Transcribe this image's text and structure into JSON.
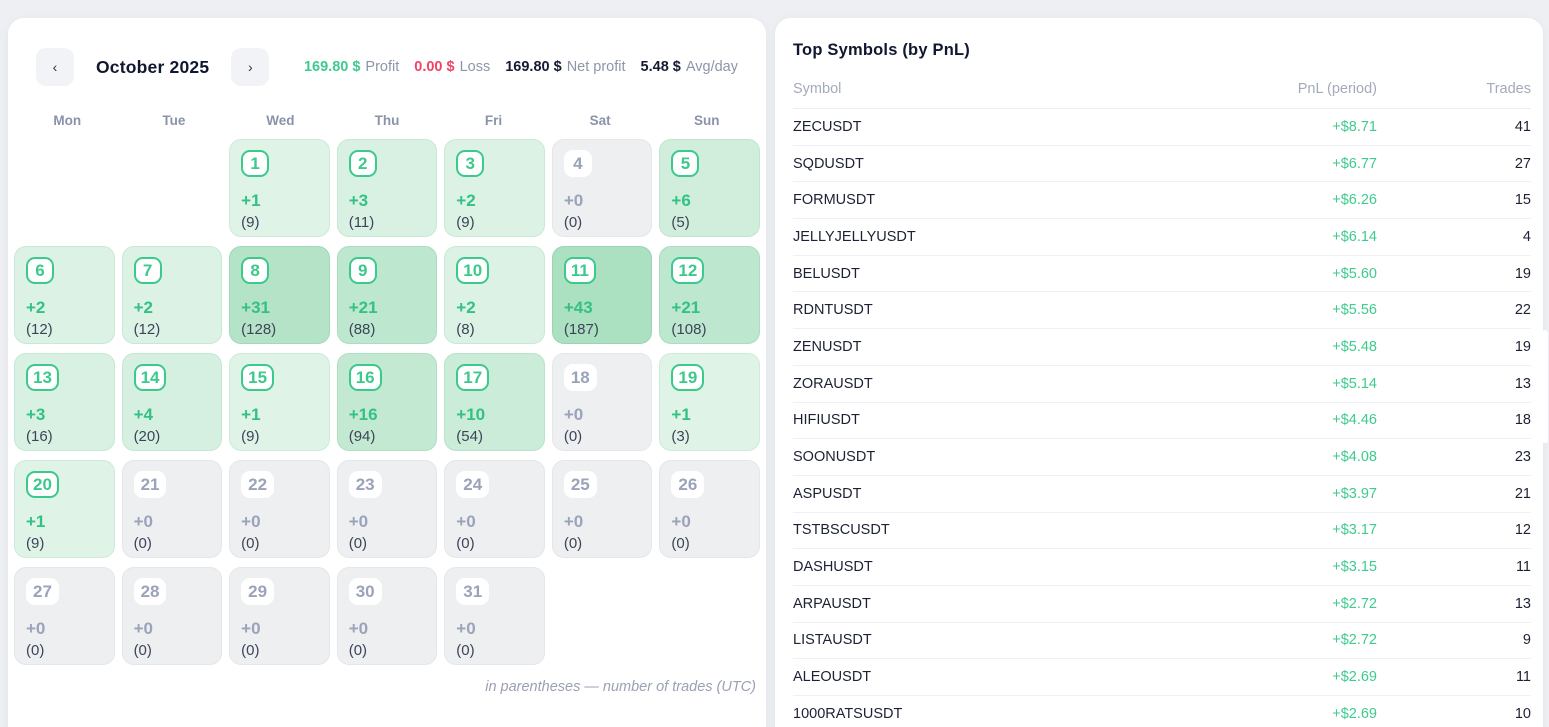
{
  "colors": {
    "green": "#3ecb8e",
    "red": "#f0436a",
    "dark": "#141b33",
    "muted_label": "#8d95a9",
    "cell_zero_bg": "#edeff1",
    "cell_green_light": "#e8f7ee",
    "cell_green_dark": "#abe0c0",
    "badge_green": "#3cc98c"
  },
  "calendar": {
    "title": "October 2025",
    "prev_label": "‹",
    "next_label": "›",
    "stats": [
      {
        "value": "169.80 $",
        "label": "Profit",
        "color": "green"
      },
      {
        "value": "0.00 $",
        "label": "Loss",
        "color": "red"
      },
      {
        "value": "169.80 $",
        "label": "Net profit",
        "color": "dark"
      },
      {
        "value": "5.48 $",
        "label": "Avg/day",
        "color": "dark"
      }
    ],
    "weekdays": [
      "Mon",
      "Tue",
      "Wed",
      "Thu",
      "Fri",
      "Sat",
      "Sun"
    ],
    "first_weekday_index": 2,
    "max_pnl": 43,
    "days": [
      {
        "day": 1,
        "pnl": 1,
        "pnl_label": "+1",
        "trades_label": "(9)"
      },
      {
        "day": 2,
        "pnl": 3,
        "pnl_label": "+3",
        "trades_label": "(11)"
      },
      {
        "day": 3,
        "pnl": 2,
        "pnl_label": "+2",
        "trades_label": "(9)"
      },
      {
        "day": 4,
        "pnl": 0,
        "pnl_label": "+0",
        "trades_label": "(0)"
      },
      {
        "day": 5,
        "pnl": 6,
        "pnl_label": "+6",
        "trades_label": "(5)"
      },
      {
        "day": 6,
        "pnl": 2,
        "pnl_label": "+2",
        "trades_label": "(12)"
      },
      {
        "day": 7,
        "pnl": 2,
        "pnl_label": "+2",
        "trades_label": "(12)"
      },
      {
        "day": 8,
        "pnl": 31,
        "pnl_label": "+31",
        "trades_label": "(128)"
      },
      {
        "day": 9,
        "pnl": 21,
        "pnl_label": "+21",
        "trades_label": "(88)"
      },
      {
        "day": 10,
        "pnl": 2,
        "pnl_label": "+2",
        "trades_label": "(8)"
      },
      {
        "day": 11,
        "pnl": 43,
        "pnl_label": "+43",
        "trades_label": "(187)"
      },
      {
        "day": 12,
        "pnl": 21,
        "pnl_label": "+21",
        "trades_label": "(108)"
      },
      {
        "day": 13,
        "pnl": 3,
        "pnl_label": "+3",
        "trades_label": "(16)"
      },
      {
        "day": 14,
        "pnl": 4,
        "pnl_label": "+4",
        "trades_label": "(20)"
      },
      {
        "day": 15,
        "pnl": 1,
        "pnl_label": "+1",
        "trades_label": "(9)"
      },
      {
        "day": 16,
        "pnl": 16,
        "pnl_label": "+16",
        "trades_label": "(94)"
      },
      {
        "day": 17,
        "pnl": 10,
        "pnl_label": "+10",
        "trades_label": "(54)"
      },
      {
        "day": 18,
        "pnl": 0,
        "pnl_label": "+0",
        "trades_label": "(0)"
      },
      {
        "day": 19,
        "pnl": 1,
        "pnl_label": "+1",
        "trades_label": "(3)"
      },
      {
        "day": 20,
        "pnl": 1,
        "pnl_label": "+1",
        "trades_label": "(9)"
      },
      {
        "day": 21,
        "pnl": 0,
        "pnl_label": "+0",
        "trades_label": "(0)"
      },
      {
        "day": 22,
        "pnl": 0,
        "pnl_label": "+0",
        "trades_label": "(0)"
      },
      {
        "day": 23,
        "pnl": 0,
        "pnl_label": "+0",
        "trades_label": "(0)"
      },
      {
        "day": 24,
        "pnl": 0,
        "pnl_label": "+0",
        "trades_label": "(0)"
      },
      {
        "day": 25,
        "pnl": 0,
        "pnl_label": "+0",
        "trades_label": "(0)"
      },
      {
        "day": 26,
        "pnl": 0,
        "pnl_label": "+0",
        "trades_label": "(0)"
      },
      {
        "day": 27,
        "pnl": 0,
        "pnl_label": "+0",
        "trades_label": "(0)"
      },
      {
        "day": 28,
        "pnl": 0,
        "pnl_label": "+0",
        "trades_label": "(0)"
      },
      {
        "day": 29,
        "pnl": 0,
        "pnl_label": "+0",
        "trades_label": "(0)"
      },
      {
        "day": 30,
        "pnl": 0,
        "pnl_label": "+0",
        "trades_label": "(0)"
      },
      {
        "day": 31,
        "pnl": 0,
        "pnl_label": "+0",
        "trades_label": "(0)"
      }
    ],
    "footnote": "in parentheses — number of trades (UTC)"
  },
  "symbols_panel": {
    "title": "Top Symbols (by PnL)",
    "columns": [
      "Symbol",
      "PnL (period)",
      "Trades"
    ],
    "rows": [
      {
        "symbol": "ZECUSDT",
        "pnl": "+$8.71",
        "trades": "41"
      },
      {
        "symbol": "SQDUSDT",
        "pnl": "+$6.77",
        "trades": "27"
      },
      {
        "symbol": "FORMUSDT",
        "pnl": "+$6.26",
        "trades": "15"
      },
      {
        "symbol": "JELLYJELLYUSDT",
        "pnl": "+$6.14",
        "trades": "4"
      },
      {
        "symbol": "BELUSDT",
        "pnl": "+$5.60",
        "trades": "19"
      },
      {
        "symbol": "RDNTUSDT",
        "pnl": "+$5.56",
        "trades": "22"
      },
      {
        "symbol": "ZENUSDT",
        "pnl": "+$5.48",
        "trades": "19"
      },
      {
        "symbol": "ZORAUSDT",
        "pnl": "+$5.14",
        "trades": "13"
      },
      {
        "symbol": "HIFIUSDT",
        "pnl": "+$4.46",
        "trades": "18"
      },
      {
        "symbol": "SOONUSDT",
        "pnl": "+$4.08",
        "trades": "23"
      },
      {
        "symbol": "ASPUSDT",
        "pnl": "+$3.97",
        "trades": "21"
      },
      {
        "symbol": "TSTBSCUSDT",
        "pnl": "+$3.17",
        "trades": "12"
      },
      {
        "symbol": "DASHUSDT",
        "pnl": "+$3.15",
        "trades": "11"
      },
      {
        "symbol": "ARPAUSDT",
        "pnl": "+$2.72",
        "trades": "13"
      },
      {
        "symbol": "LISTAUSDT",
        "pnl": "+$2.72",
        "trades": "9"
      },
      {
        "symbol": "ALEOUSDT",
        "pnl": "+$2.69",
        "trades": "11"
      },
      {
        "symbol": "1000RATSUSDT",
        "pnl": "+$2.69",
        "trades": "10"
      }
    ]
  }
}
